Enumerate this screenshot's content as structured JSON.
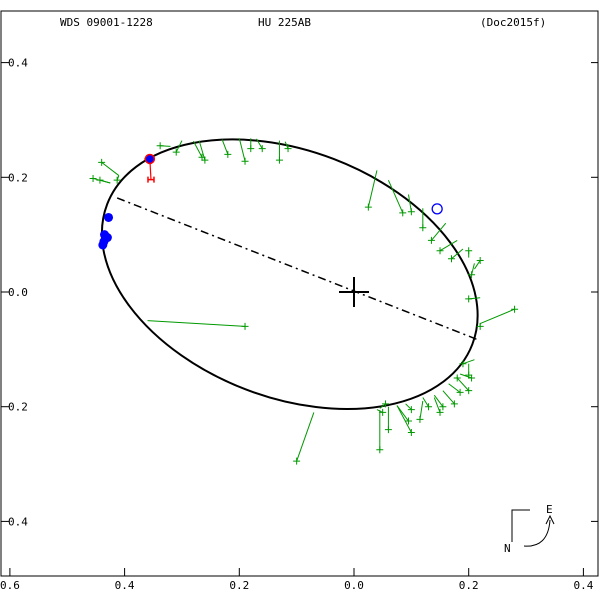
{
  "header": {
    "id": "WDS 09001-1228",
    "name": "HU  225AB",
    "reference": "(Doc2015f)"
  },
  "compass": {
    "east_label": "E",
    "north_label": "N"
  },
  "colors": {
    "orbit": "#000000",
    "residual": "#009900",
    "first_obs": "#ff0000",
    "micrometer": "#0000ff",
    "axes": "#000000"
  },
  "chart_data": {
    "type": "scatter",
    "title": "",
    "xlabel": "",
    "ylabel": "",
    "xlim": [
      0.6,
      -0.4
    ],
    "ylim": [
      -0.5,
      0.5
    ],
    "x_ticks": [
      {
        "value": 0.6,
        "label": "0.6"
      },
      {
        "value": 0.4,
        "label": "0.4"
      },
      {
        "value": 0.2,
        "label": "0.2"
      },
      {
        "value": 0.0,
        "label": "0.0"
      },
      {
        "value": -0.2,
        "label": "0.2"
      },
      {
        "value": -0.4,
        "label": "0.4"
      }
    ],
    "y_ticks": [
      {
        "value": 0.4,
        "label": "0.4"
      },
      {
        "value": 0.2,
        "label": "0.2"
      },
      {
        "value": 0.0,
        "label": "0.0"
      },
      {
        "value": -0.2,
        "label": "0.2"
      },
      {
        "value": -0.4,
        "label": "0.4"
      }
    ],
    "primary": [
      0,
      0
    ],
    "ellipse": {
      "cx": 0.112,
      "cy": 0.031,
      "rx": 0.341,
      "ry": 0.215,
      "tilt_deg": 21
    },
    "line_of_nodes": [
      [
        0.413,
        0.164
      ],
      [
        -0.218,
        -0.084
      ]
    ],
    "residual_points": [
      {
        "pos": [
          0.455,
          0.198
        ],
        "fit": [
          0.425,
          0.19
        ]
      },
      {
        "pos": [
          0.443,
          0.195
        ],
        "fit": [
          0.425,
          0.19
        ]
      },
      {
        "pos": [
          0.44,
          0.226
        ],
        "fit": [
          0.41,
          0.203
        ]
      },
      {
        "pos": [
          0.413,
          0.195
        ],
        "fit": [
          0.41,
          0.203
        ]
      },
      {
        "pos": [
          0.36,
          0.232
        ],
        "fit": [
          0.36,
          0.23
        ]
      },
      {
        "pos": [
          0.338,
          0.255
        ],
        "fit": [
          0.32,
          0.254
        ]
      },
      {
        "pos": [
          0.31,
          0.244
        ],
        "fit": [
          0.3,
          0.264
        ]
      },
      {
        "pos": [
          0.265,
          0.235
        ],
        "fit": [
          0.28,
          0.263
        ]
      },
      {
        "pos": [
          0.26,
          0.23
        ],
        "fit": [
          0.27,
          0.264
        ]
      },
      {
        "pos": [
          0.22,
          0.24
        ],
        "fit": [
          0.23,
          0.266
        ]
      },
      {
        "pos": [
          0.19,
          0.228
        ],
        "fit": [
          0.2,
          0.268
        ]
      },
      {
        "pos": [
          0.18,
          0.25
        ],
        "fit": [
          0.18,
          0.268
        ]
      },
      {
        "pos": [
          0.16,
          0.25
        ],
        "fit": [
          0.17,
          0.267
        ]
      },
      {
        "pos": [
          0.13,
          0.23
        ],
        "fit": [
          0.13,
          0.264
        ]
      },
      {
        "pos": [
          0.115,
          0.25
        ],
        "fit": [
          0.12,
          0.262
        ]
      },
      {
        "pos": [
          -0.025,
          0.148
        ],
        "fit": [
          -0.04,
          0.212
        ]
      },
      {
        "pos": [
          -0.085,
          0.138
        ],
        "fit": [
          -0.06,
          0.195
        ]
      },
      {
        "pos": [
          -0.1,
          0.14
        ],
        "fit": [
          -0.095,
          0.17
        ]
      },
      {
        "pos": [
          -0.12,
          0.112
        ],
        "fit": [
          -0.12,
          0.146
        ]
      },
      {
        "pos": [
          -0.135,
          0.09
        ],
        "fit": [
          -0.16,
          0.12
        ]
      },
      {
        "pos": [
          -0.15,
          0.072
        ],
        "fit": [
          -0.18,
          0.09
        ]
      },
      {
        "pos": [
          -0.17,
          0.058
        ],
        "fit": [
          -0.19,
          0.075
        ]
      },
      {
        "pos": [
          -0.2,
          0.072
        ],
        "fit": [
          -0.2,
          0.06
        ]
      },
      {
        "pos": [
          -0.22,
          0.055
        ],
        "fit": [
          -0.21,
          0.04
        ]
      },
      {
        "pos": [
          -0.205,
          0.03
        ],
        "fit": [
          -0.21,
          0.05
        ]
      },
      {
        "pos": [
          -0.2,
          -0.012
        ],
        "fit": [
          -0.22,
          -0.01
        ]
      },
      {
        "pos": [
          -0.28,
          -0.03
        ],
        "fit": [
          -0.22,
          -0.055
        ]
      },
      {
        "pos": [
          -0.22,
          -0.06
        ],
        "fit": [
          -0.22,
          -0.055
        ]
      },
      {
        "pos": [
          0.19,
          -0.06
        ],
        "fit": [
          0.36,
          -0.05
        ]
      },
      {
        "pos": [
          -0.19,
          -0.125
        ],
        "fit": [
          -0.21,
          -0.118
        ]
      },
      {
        "pos": [
          -0.2,
          -0.145
        ],
        "fit": [
          -0.2,
          -0.125
        ]
      },
      {
        "pos": [
          -0.18,
          -0.15
        ],
        "fit": [
          -0.18,
          -0.148
        ]
      },
      {
        "pos": [
          -0.205,
          -0.15
        ],
        "fit": [
          -0.185,
          -0.143
        ]
      },
      {
        "pos": [
          -0.2,
          -0.172
        ],
        "fit": [
          -0.18,
          -0.15
        ]
      },
      {
        "pos": [
          -0.185,
          -0.175
        ],
        "fit": [
          -0.165,
          -0.16
        ]
      },
      {
        "pos": [
          -0.175,
          -0.195
        ],
        "fit": [
          -0.155,
          -0.172
        ]
      },
      {
        "pos": [
          -0.155,
          -0.2
        ],
        "fit": [
          -0.14,
          -0.18
        ]
      },
      {
        "pos": [
          -0.15,
          -0.21
        ],
        "fit": [
          -0.14,
          -0.184
        ]
      },
      {
        "pos": [
          -0.13,
          -0.2
        ],
        "fit": [
          -0.12,
          -0.184
        ]
      },
      {
        "pos": [
          -0.115,
          -0.222
        ],
        "fit": [
          -0.12,
          -0.19
        ]
      },
      {
        "pos": [
          -0.1,
          -0.205
        ],
        "fit": [
          -0.09,
          -0.195
        ]
      },
      {
        "pos": [
          -0.095,
          -0.225
        ],
        "fit": [
          -0.075,
          -0.198
        ]
      },
      {
        "pos": [
          -0.1,
          -0.245
        ],
        "fit": [
          -0.075,
          -0.198
        ]
      },
      {
        "pos": [
          -0.06,
          -0.24
        ],
        "fit": [
          -0.06,
          -0.2
        ]
      },
      {
        "pos": [
          -0.055,
          -0.195
        ],
        "fit": [
          -0.045,
          -0.203
        ]
      },
      {
        "pos": [
          -0.05,
          -0.21
        ],
        "fit": [
          -0.04,
          -0.205
        ]
      },
      {
        "pos": [
          -0.045,
          -0.275
        ],
        "fit": [
          -0.045,
          -0.206
        ]
      },
      {
        "pos": [
          0.1,
          -0.295
        ],
        "fit": [
          0.07,
          -0.21
        ]
      }
    ],
    "first_observation": {
      "pos": [
        0.356,
        0.232
      ],
      "fit": [
        0.354,
        0.196
      ]
    },
    "micrometer_points": [
      [
        0.428,
        0.13
      ],
      [
        0.435,
        0.1
      ],
      [
        0.43,
        0.095
      ],
      [
        0.438,
        0.082
      ],
      [
        0.436,
        0.088
      ]
    ],
    "last_position": [
      -0.145,
      0.145
    ]
  }
}
